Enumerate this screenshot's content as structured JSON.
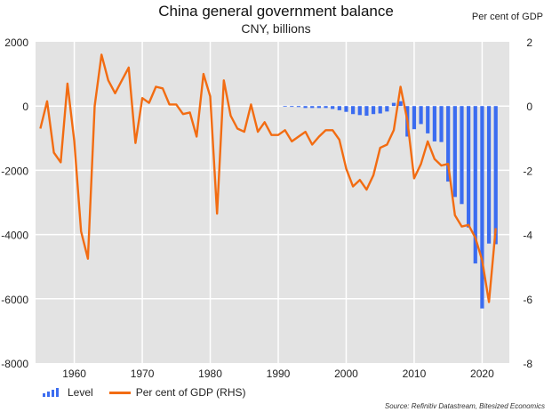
{
  "chart_data": {
    "type": "bar+line",
    "title": "China general government balance",
    "subtitle": "CNY, billions",
    "rhs_unit_label": "Per cent of GDP",
    "source": "Source: Refinitiv Datastream, Bitesized Economics",
    "x_ticks": [
      "1960",
      "1970",
      "1980",
      "1990",
      "2000",
      "2010",
      "2020"
    ],
    "left_axis": {
      "min": -8000,
      "max": 2000,
      "ticks": [
        "2000",
        "0",
        "-2000",
        "-4000",
        "-6000",
        "-8000"
      ]
    },
    "right_axis": {
      "min": -8,
      "max": 2,
      "ticks": [
        "2",
        "0",
        "-2",
        "-4",
        "-6",
        "-8"
      ]
    },
    "series": [
      {
        "name": "Level",
        "type": "bar",
        "axis": "left",
        "color": "#3b6cf0",
        "x": [
          1991,
          1992,
          1993,
          1994,
          1995,
          1996,
          1997,
          1998,
          1999,
          2000,
          2001,
          2002,
          2003,
          2004,
          2005,
          2006,
          2007,
          2008,
          2009,
          2010,
          2011,
          2012,
          2013,
          2014,
          2015,
          2016,
          2017,
          2018,
          2019,
          2020,
          2021,
          2022
        ],
        "values": [
          -20,
          -25,
          -30,
          -60,
          -60,
          -60,
          -60,
          -90,
          -130,
          -180,
          -250,
          -280,
          -300,
          -250,
          -230,
          -170,
          100,
          150,
          -950,
          -720,
          -560,
          -850,
          -1100,
          -1120,
          -2350,
          -2830,
          -3050,
          -3780,
          -4900,
          -6300,
          -4280,
          -4300
        ]
      },
      {
        "name": "Per cent of GDP (RHS)",
        "type": "line",
        "axis": "right",
        "color": "#f26c12",
        "x": [
          1955,
          1956,
          1957,
          1958,
          1959,
          1960,
          1961,
          1962,
          1963,
          1964,
          1965,
          1966,
          1967,
          1968,
          1969,
          1970,
          1971,
          1972,
          1973,
          1974,
          1975,
          1976,
          1977,
          1978,
          1979,
          1980,
          1981,
          1982,
          1983,
          1984,
          1985,
          1986,
          1987,
          1988,
          1989,
          1990,
          1991,
          1992,
          1993,
          1994,
          1995,
          1996,
          1997,
          1998,
          1999,
          2000,
          2001,
          2002,
          2003,
          2004,
          2005,
          2006,
          2007,
          2008,
          2009,
          2010,
          2011,
          2012,
          2013,
          2014,
          2015,
          2016,
          2017,
          2018,
          2019,
          2020,
          2021,
          2022
        ],
        "values": [
          -0.7,
          0.15,
          -1.45,
          -1.75,
          0.7,
          -1.1,
          -3.9,
          -4.75,
          0.0,
          1.6,
          0.8,
          0.4,
          0.8,
          1.2,
          -1.15,
          0.25,
          0.1,
          0.6,
          0.55,
          0.05,
          0.05,
          -0.25,
          -0.2,
          -0.95,
          1.0,
          0.3,
          -3.35,
          0.8,
          -0.3,
          -0.7,
          -0.8,
          0.05,
          -0.8,
          -0.5,
          -0.9,
          -0.9,
          -0.75,
          -1.1,
          -0.95,
          -0.8,
          -1.2,
          -0.95,
          -0.75,
          -0.75,
          -1.05,
          -1.95,
          -2.5,
          -2.3,
          -2.6,
          -2.15,
          -1.3,
          -1.2,
          -0.75,
          0.6,
          -0.45,
          -2.25,
          -1.8,
          -1.1,
          -1.65,
          -1.85,
          -1.8,
          -3.4,
          -3.75,
          -3.7,
          -4.1,
          -4.8,
          -6.1,
          -3.8
        ]
      }
    ],
    "legend": [
      "Level",
      "Per cent of GDP (RHS)"
    ],
    "grid": true
  }
}
